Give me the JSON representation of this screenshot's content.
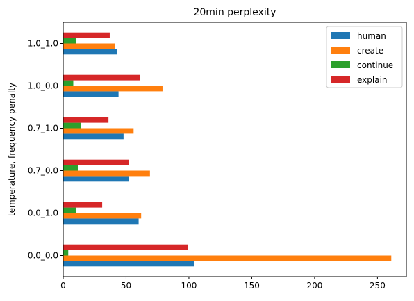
{
  "chart_data": {
    "type": "bar",
    "orientation": "horizontal",
    "title": "20min perplexity",
    "xlabel": "",
    "ylabel": "temperature, frequency penalty",
    "categories": [
      "0.0_0.0",
      "0.0_1.0",
      "0.7_0.0",
      "0.7_1.0",
      "1.0_0.0",
      "1.0_1.0"
    ],
    "series": [
      {
        "name": "human",
        "color": "#1f77b4",
        "values": [
          104,
          60,
          52,
          48,
          44,
          43
        ]
      },
      {
        "name": "create",
        "color": "#ff7f0e",
        "values": [
          261,
          62,
          69,
          56,
          79,
          41
        ]
      },
      {
        "name": "continue",
        "color": "#2ca02c",
        "values": [
          4,
          10,
          12,
          14,
          8,
          10
        ]
      },
      {
        "name": "explain",
        "color": "#d62728",
        "values": [
          99,
          31,
          52,
          36,
          61,
          37
        ]
      }
    ],
    "xlim": [
      0,
      273
    ],
    "xticks": [
      0,
      50,
      100,
      150,
      200,
      250
    ],
    "legend_position": "top-right",
    "grid": false
  }
}
